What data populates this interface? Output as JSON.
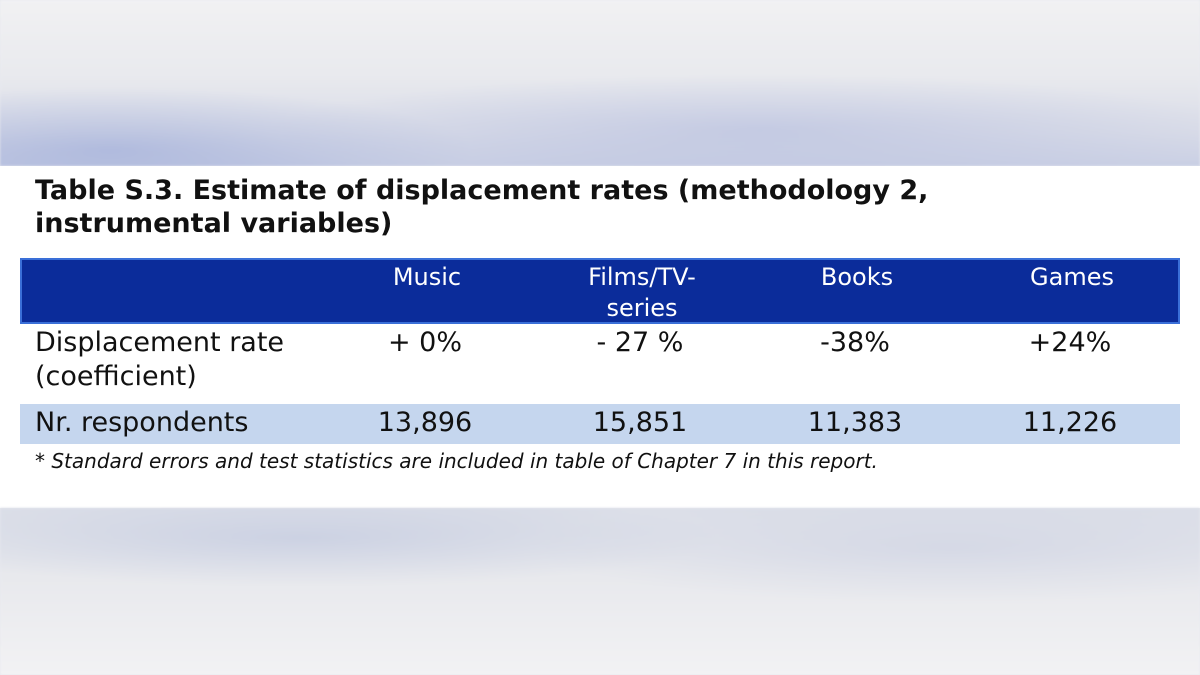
{
  "title": "Table S.3. Estimate of displacement rates (methodology 2, instrumental variables)",
  "table": {
    "headers": [
      "",
      "Music",
      "Films/TV-series",
      "Books",
      "Games"
    ],
    "rows": [
      {
        "label": "Displacement rate (coefficient)",
        "values": [
          "+ 0%",
          "- 27 %",
          "-38%",
          "+24%"
        ]
      },
      {
        "label": "Nr. respondents",
        "values": [
          "13,896",
          "15,851",
          "11,383",
          "11,226"
        ]
      }
    ]
  },
  "footnote": "* Standard errors and test statistics are included in table of Chapter 7 in this report.",
  "colors": {
    "header_bg": "#0b2c9a",
    "header_border": "#3a6fd8",
    "alt_row_bg": "#c5d6ee"
  }
}
